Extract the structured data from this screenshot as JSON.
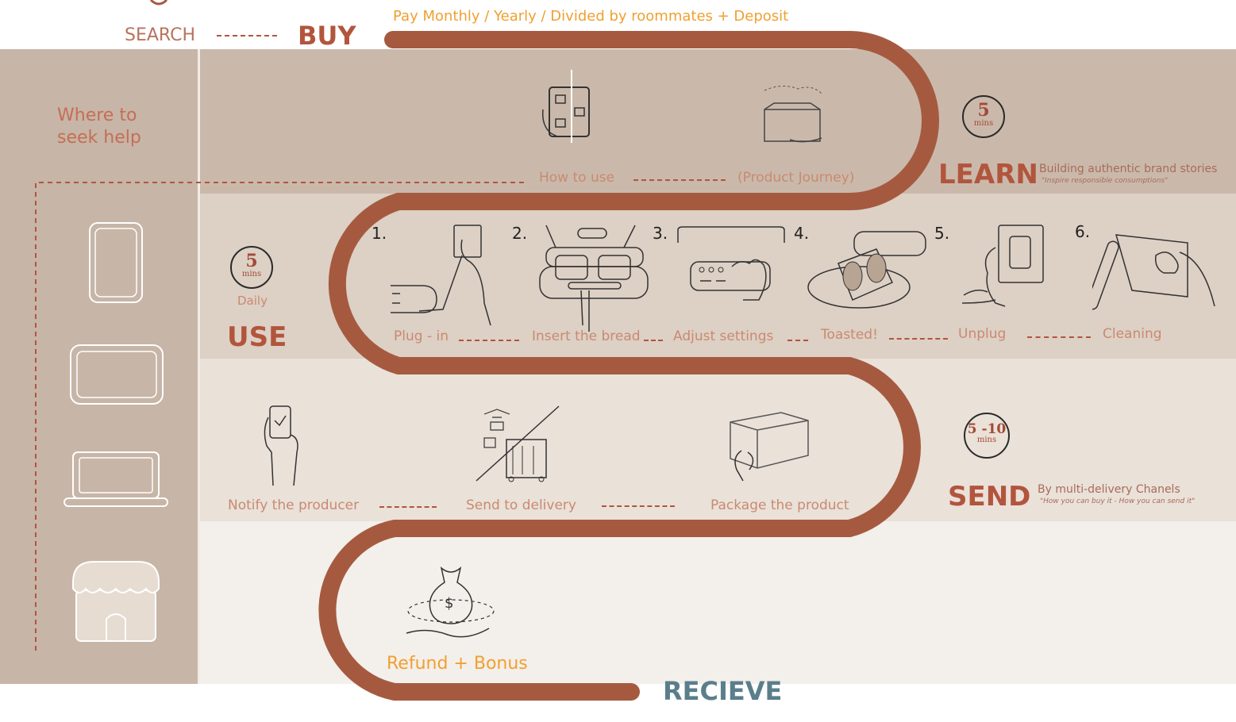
{
  "header": {
    "search_label": "SEARCH",
    "buy_label": "BUY",
    "payment_note": "Pay Monthly / Yearly / Divided by roommates + Deposit"
  },
  "sidebar": {
    "help_label": "Where to seek help",
    "channels": [
      "phone-icon",
      "tablet-icon",
      "laptop-icon",
      "store-icon"
    ]
  },
  "learn": {
    "stage_label": "LEARN",
    "timer_value": "5",
    "timer_unit": "mins",
    "description": "Building authentic brand stories",
    "tagline": "\"Inspire responsible consumptions\"",
    "steps": [
      "How to use",
      "(Product Journey)"
    ]
  },
  "use": {
    "stage_label": "USE",
    "timer_value": "5",
    "timer_unit": "mins",
    "frequency": "Daily",
    "steps": [
      {
        "number": "1.",
        "label": "Plug - in"
      },
      {
        "number": "2.",
        "label": "Insert the bread"
      },
      {
        "number": "3.",
        "label": "Adjust settings"
      },
      {
        "number": "4.",
        "label": "Toasted!"
      },
      {
        "number": "5.",
        "label": "Unplug"
      },
      {
        "number": "6.",
        "label": "Cleaning"
      }
    ]
  },
  "send": {
    "stage_label": "SEND",
    "timer_value": "5 -10",
    "timer_unit": "mins",
    "description": "By multi-delivery Chanels",
    "tagline": "\"How you can buy it - How you can send it\"",
    "steps": [
      "Notify the producer",
      "Send to delivery",
      "Package the product"
    ]
  },
  "receive": {
    "stage_label": "RECIEVE",
    "step": "Refund + Bonus"
  },
  "colors": {
    "path": "#a55a40",
    "accent_orange": "#f0a030",
    "stage_red": "#b2553d",
    "receive_teal": "#5b7e8b",
    "band_learn": "#cab9ab",
    "band_use": "#ddd0c5",
    "band_send": "#eae1d9",
    "band_receive": "#f3efeb",
    "sidebar": "#c7b5a7"
  }
}
